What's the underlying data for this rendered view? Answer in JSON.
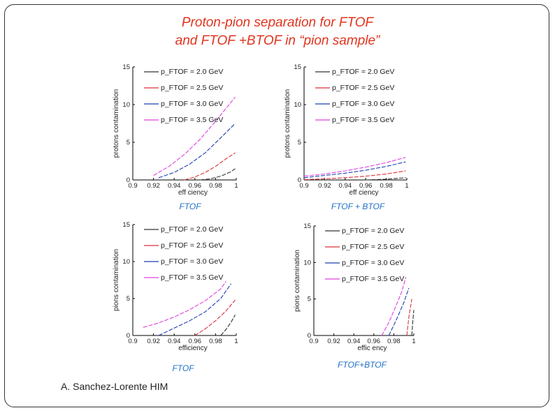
{
  "slide": {
    "title_line1": "Proton-pion separation for FTOF",
    "title_line2": "and FTOF +BTOF in “pion sample”",
    "author": "A. Sanchez-Lorente HIM",
    "colors": {
      "title": "#e0341e",
      "caption": "#1f6fc8"
    }
  },
  "chart_data": [
    {
      "type": "line",
      "caption": "FTOF",
      "xlabel": "eff ciency",
      "ylabel": "protons contamination",
      "xlim": [
        0.9,
        1.0
      ],
      "ylim": [
        0,
        15
      ],
      "x_ticks": [
        "0.9",
        "0.92",
        "0.94",
        "0.96",
        "0.98",
        "1"
      ],
      "y_ticks": [
        "0",
        "5",
        "10",
        "15"
      ],
      "series": [
        {
          "name": "2.0 GeV",
          "legend": "p_FTOF = 2.0 GeV",
          "color": "#333333",
          "x": [
            0.965,
            0.975,
            0.985,
            0.99,
            0.995,
            0.999
          ],
          "y": [
            0.0,
            0.15,
            0.5,
            0.8,
            1.1,
            1.5
          ]
        },
        {
          "name": "2.5 GeV",
          "legend": "p_FTOF = 2.5 GeV",
          "color": "#d9323a",
          "x": [
            0.95,
            0.96,
            0.97,
            0.98,
            0.99,
            0.999
          ],
          "y": [
            0.0,
            0.4,
            1.0,
            1.8,
            2.8,
            3.6
          ]
        },
        {
          "name": "3.0 GeV",
          "legend": "p_FTOF = 3.0 GeV",
          "color": "#1f3fb0",
          "x": [
            0.925,
            0.94,
            0.955,
            0.97,
            0.985,
            0.999
          ],
          "y": [
            0.3,
            1.0,
            2.1,
            3.6,
            5.6,
            7.5
          ]
        },
        {
          "name": "3.5 GeV",
          "legend": "p_FTOF = 3.5 GeV",
          "color": "#e040e0",
          "x": [
            0.92,
            0.935,
            0.95,
            0.965,
            0.98,
            0.999
          ],
          "y": [
            0.6,
            1.8,
            3.4,
            5.4,
            7.8,
            11.0
          ]
        }
      ]
    },
    {
      "type": "line",
      "caption": "FTOF + BTOF",
      "xlabel": "eff ciency",
      "ylabel": "protons contamination",
      "xlim": [
        0.9,
        1.0
      ],
      "ylim": [
        0,
        15
      ],
      "x_ticks": [
        "0.9",
        "0.92",
        "0.94",
        "0.96",
        "0.98",
        "1"
      ],
      "y_ticks": [
        "0",
        "5",
        "10",
        "15"
      ],
      "series": [
        {
          "name": "2.0 GeV",
          "legend": "p_FTOF = 2.0 GeV",
          "color": "#333333",
          "x": [
            0.96,
            0.97,
            0.98,
            0.99,
            0.999
          ],
          "y": [
            0.0,
            0.05,
            0.1,
            0.2,
            0.3
          ]
        },
        {
          "name": "2.5 GeV",
          "legend": "p_FTOF = 2.5 GeV",
          "color": "#d9323a",
          "x": [
            0.9,
            0.92,
            0.94,
            0.96,
            0.98,
            0.999
          ],
          "y": [
            0.05,
            0.15,
            0.3,
            0.5,
            0.8,
            1.2
          ]
        },
        {
          "name": "3.0 GeV",
          "legend": "p_FTOF = 3.0 GeV",
          "color": "#1f3fb0",
          "x": [
            0.9,
            0.92,
            0.94,
            0.96,
            0.98,
            0.999
          ],
          "y": [
            0.3,
            0.6,
            0.9,
            1.3,
            1.8,
            2.4
          ]
        },
        {
          "name": "3.5 GeV",
          "legend": "p_FTOF = 3.5 GeV",
          "color": "#e040e0",
          "x": [
            0.9,
            0.92,
            0.94,
            0.96,
            0.98,
            0.999
          ],
          "y": [
            0.5,
            0.8,
            1.2,
            1.7,
            2.3,
            3.0
          ]
        }
      ]
    },
    {
      "type": "line",
      "caption": "FTOF",
      "xlabel": "efficiency",
      "ylabel": "pions contamination",
      "xlim": [
        0.9,
        1.0
      ],
      "ylim": [
        0,
        15
      ],
      "x_ticks": [
        "0.9",
        "0.92",
        "0.94",
        "0.96",
        "0.98",
        "1"
      ],
      "y_ticks": [
        "0",
        "5",
        "10",
        "15"
      ],
      "series": [
        {
          "name": "2.0 GeV",
          "legend": "p_FTOF = 2.0 GeV",
          "color": "#333333",
          "x": [
            0.985,
            0.99,
            0.995,
            0.999
          ],
          "y": [
            0.0,
            0.8,
            1.8,
            2.8
          ]
        },
        {
          "name": "2.5 GeV",
          "legend": "p_FTOF = 2.5 GeV",
          "color": "#d9323a",
          "x": [
            0.96,
            0.97,
            0.98,
            0.99,
            0.999
          ],
          "y": [
            0.0,
            0.9,
            2.0,
            3.3,
            4.8
          ]
        },
        {
          "name": "3.0 GeV",
          "legend": "p_FTOF = 3.0 GeV",
          "color": "#1f3fb0",
          "x": [
            0.925,
            0.94,
            0.955,
            0.97,
            0.985,
            0.995
          ],
          "y": [
            0.0,
            1.0,
            2.0,
            3.2,
            5.0,
            7.0
          ]
        },
        {
          "name": "3.5 GeV",
          "legend": "p_FTOF = 3.5 GeV",
          "color": "#e040e0",
          "x": [
            0.91,
            0.925,
            0.94,
            0.955,
            0.97,
            0.985,
            0.99
          ],
          "y": [
            1.1,
            1.7,
            2.5,
            3.5,
            4.7,
            6.3,
            7.3
          ]
        }
      ]
    },
    {
      "type": "line",
      "caption": "FTOF+BTOF",
      "xlabel": "effic ency",
      "ylabel": "pions contamination",
      "xlim": [
        0.9,
        1.0
      ],
      "ylim": [
        0,
        15
      ],
      "x_ticks": [
        "0.9",
        "0.92",
        "0.94",
        "0.96",
        "0.98",
        "1"
      ],
      "y_ticks": [
        "0",
        "5",
        "10",
        "15"
      ],
      "series": [
        {
          "name": "2.0 GeV",
          "legend": "p_FTOF = 2.0 GeV",
          "color": "#333333",
          "x": [
            0.998,
            0.999,
            1.0
          ],
          "y": [
            0.0,
            2.0,
            3.5
          ]
        },
        {
          "name": "2.5 GeV",
          "legend": "p_FTOF = 2.5 GeV",
          "color": "#d9323a",
          "x": [
            0.993,
            0.995,
            0.998
          ],
          "y": [
            0.0,
            2.5,
            5.0
          ]
        },
        {
          "name": "3.0 GeV",
          "legend": "p_FTOF = 3.0 GeV",
          "color": "#1f3fb0",
          "x": [
            0.975,
            0.982,
            0.99,
            0.995
          ],
          "y": [
            0.0,
            2.0,
            4.5,
            6.5
          ]
        },
        {
          "name": "3.5 GeV",
          "legend": "p_FTOF = 3.5 GeV",
          "color": "#e040e0",
          "x": [
            0.968,
            0.975,
            0.982,
            0.988,
            0.992
          ],
          "y": [
            0.0,
            1.8,
            4.0,
            6.0,
            8.0
          ]
        }
      ]
    }
  ]
}
